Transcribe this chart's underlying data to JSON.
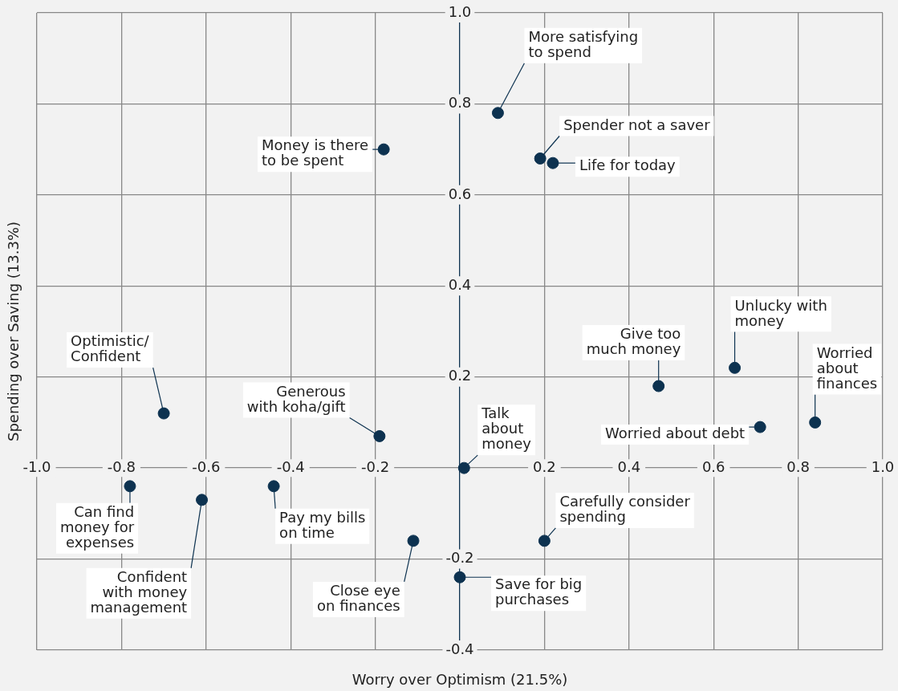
{
  "chart_data": {
    "type": "scatter",
    "xlabel": "Worry over Optimism (21.5%)",
    "ylabel": "Spending over Saving (13.3%)",
    "x": [
      0.09,
      -0.18,
      0.19,
      0.22,
      0.65,
      0.47,
      0.84,
      0.71,
      -0.7,
      -0.19,
      0.01,
      -0.78,
      -0.44,
      -0.61,
      -0.11,
      0.2,
      0.0
    ],
    "values": [
      0.78,
      0.7,
      0.68,
      0.67,
      0.22,
      0.18,
      0.1,
      0.09,
      0.12,
      0.07,
      0.0,
      -0.04,
      -0.04,
      -0.07,
      -0.16,
      -0.16,
      -0.24
    ],
    "color": "#0d3250",
    "marker": "circle",
    "xlim": [
      -1,
      1
    ],
    "ylim": [
      -0.4,
      1
    ],
    "xticks": [
      {
        "value": -1,
        "label": "-1.0"
      },
      -0.8,
      -0.6,
      -0.4,
      -0.2,
      {
        "value": 0,
        "label": null
      },
      0.2,
      0.4,
      0.6,
      0.8,
      {
        "value": 1,
        "label": "1.0"
      }
    ],
    "yticks": [
      -0.4,
      -0.2,
      {
        "value": 0,
        "label": null
      },
      0.2,
      0.4,
      0.6,
      0.8,
      {
        "value": 1,
        "label": "1.0"
      }
    ],
    "grid": true,
    "annotations": [
      {
        "text": "More satisfying to spend",
        "x": 0.09,
        "y": 0.78
      },
      {
        "text": "Money is there to be spent",
        "x": -0.18,
        "y": 0.7
      },
      {
        "text": "Spender not a saver",
        "x": 0.19,
        "y": 0.68
      },
      {
        "text": "Life for today",
        "x": 0.22,
        "y": 0.67
      },
      {
        "text": "Unlucky with money",
        "x": 0.65,
        "y": 0.22
      },
      {
        "text": "Give too much money",
        "x": 0.47,
        "y": 0.18
      },
      {
        "text": "Worried about finances",
        "x": 0.84,
        "y": 0.1
      },
      {
        "text": "Worried about debt",
        "x": 0.71,
        "y": 0.09
      },
      {
        "text": "Optimistic/Confident",
        "x": -0.7,
        "y": 0.12
      },
      {
        "text": "Generous with koha/gift",
        "x": -0.19,
        "y": 0.07
      },
      {
        "text": "Talk about money",
        "x": 0.01,
        "y": 0.0
      },
      {
        "text": "Can find money for expenses",
        "x": -0.78,
        "y": -0.04
      },
      {
        "text": "Pay my bills on time",
        "x": -0.44,
        "y": -0.04
      },
      {
        "text": "Confident with money management",
        "x": -0.61,
        "y": -0.07
      },
      {
        "text": "Close eye on finances",
        "x": -0.11,
        "y": -0.16
      },
      {
        "text": "Carefully consider spending",
        "x": 0.2,
        "y": -0.16
      },
      {
        "text": "Save for big purchases",
        "x": 0.0,
        "y": -0.24
      }
    ]
  }
}
